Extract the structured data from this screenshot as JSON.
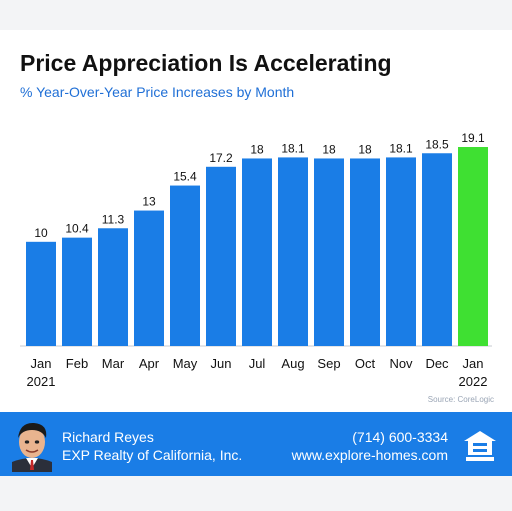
{
  "chart_data": {
    "type": "bar",
    "title": "Price Appreciation Is Accelerating",
    "subtitle": "% Year-Over-Year Price Increases by Month",
    "categories": [
      [
        "Jan",
        "2021"
      ],
      [
        "Feb",
        ""
      ],
      [
        "Mar",
        ""
      ],
      [
        "Apr",
        ""
      ],
      [
        "May",
        ""
      ],
      [
        "Jun",
        ""
      ],
      [
        "Jul",
        ""
      ],
      [
        "Aug",
        ""
      ],
      [
        "Sep",
        ""
      ],
      [
        "Oct",
        ""
      ],
      [
        "Nov",
        ""
      ],
      [
        "Dec",
        ""
      ],
      [
        "Jan",
        "2022"
      ]
    ],
    "values": [
      10,
      10.4,
      11.3,
      13,
      15.4,
      17.2,
      18,
      18.1,
      18,
      18,
      18.1,
      18.5,
      19.1
    ],
    "value_labels": [
      "10",
      "10.4",
      "11.3",
      "13",
      "15.4",
      "17.2",
      "18",
      "18.1",
      "18",
      "18",
      "18.1",
      "18.5",
      "19.1"
    ],
    "ylim": [
      0,
      19.1
    ],
    "grid": false,
    "colors": {
      "default_bar": "#1a7de6",
      "highlight_bar": "#3fe032",
      "highlight_index": 12
    },
    "source": "Source: CoreLogic"
  },
  "footer": {
    "name": "Richard Reyes",
    "company": "EXP Realty of California, Inc.",
    "phone": "(714) 600-3334",
    "website": "www.explore-homes.com",
    "background": "#1a7de6"
  },
  "icons": {
    "avatar": "agent-avatar",
    "logo": "equal-housing-opportunity-icon"
  }
}
